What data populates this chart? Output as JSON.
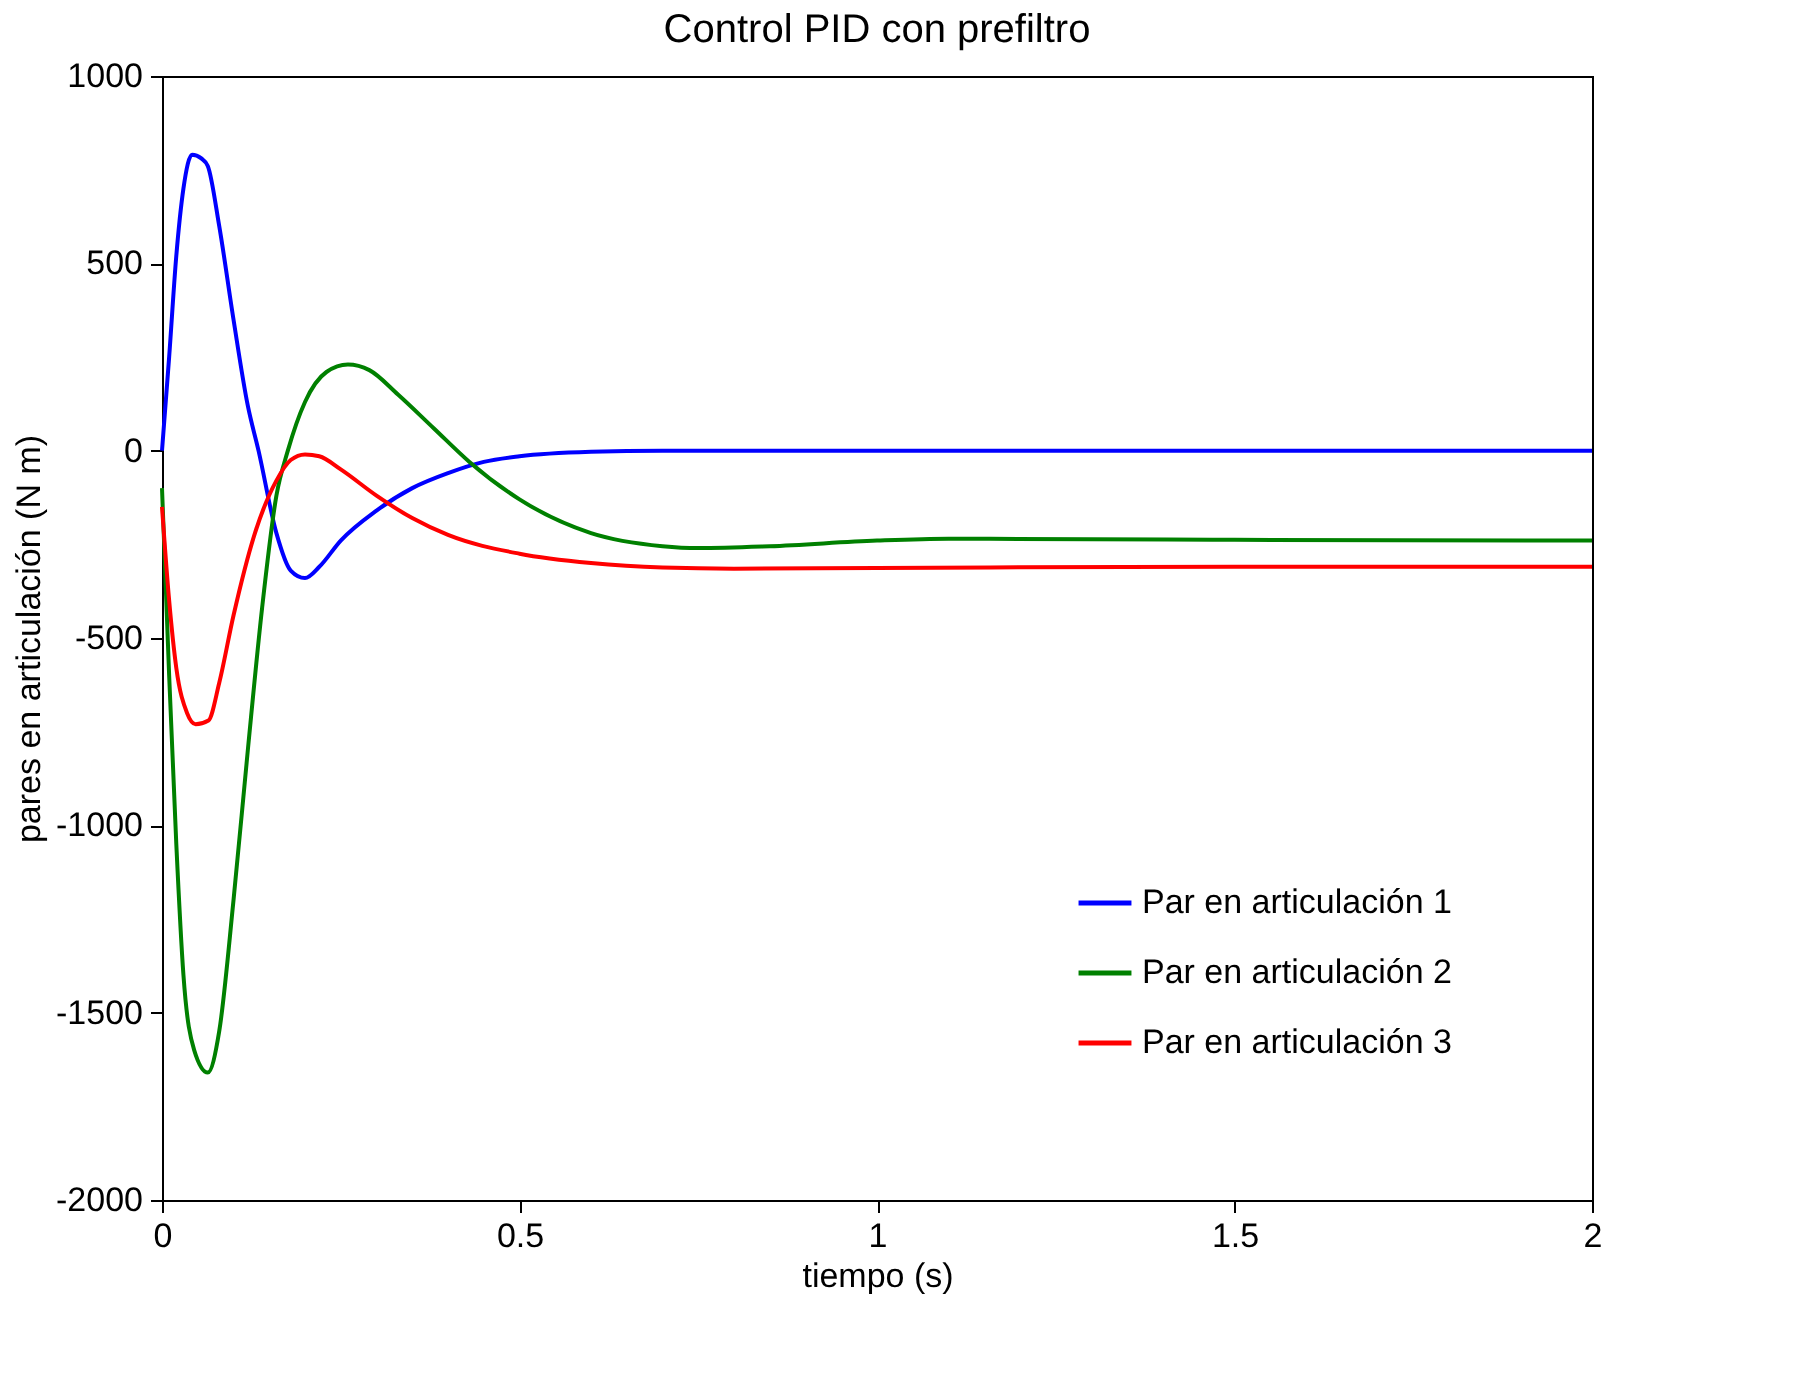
{
  "chart_data": {
    "type": "line",
    "title": "Control PID con prefiltro",
    "xlabel": "tiempo (s)",
    "ylabel": "pares en articulación (N m)",
    "xlim": [
      0,
      2
    ],
    "xticks": [
      0,
      0.5,
      1,
      1.5,
      2
    ],
    "ylim": [
      -2000,
      1000
    ],
    "yticks": [
      -2000,
      -1500,
      -1000,
      -500,
      0,
      500,
      1000
    ],
    "grid": false,
    "legend": "bottom right",
    "line_style": "solid",
    "marker": "none",
    "series": [
      {
        "name": "Par en articulación 1",
        "color": "#0000ff",
        "x": [
          0,
          0.01,
          0.02,
          0.03,
          0.042,
          0.055,
          0.064,
          0.08,
          0.1,
          0.12,
          0.135,
          0.16,
          0.18,
          0.2,
          0.22,
          0.25,
          0.3,
          0.35,
          0.4,
          0.45,
          0.5,
          0.6,
          0.7,
          1,
          1.5,
          2
        ],
        "values": [
          0,
          250,
          520,
          700,
          790,
          780,
          760,
          600,
          350,
          120,
          0,
          -220,
          -320,
          -340,
          -310,
          -240,
          -160,
          -100,
          -60,
          -30,
          -15,
          -3,
          0,
          0,
          0,
          0
        ]
      },
      {
        "name": "Par en articulación 2",
        "color": "#008000",
        "x": [
          0,
          0.01,
          0.02,
          0.03,
          0.045,
          0.064,
          0.08,
          0.1,
          0.12,
          0.14,
          0.16,
          0.176,
          0.2,
          0.23,
          0.26,
          0.29,
          0.33,
          0.38,
          0.43,
          0.5,
          0.6,
          0.7,
          0.75,
          0.85,
          1,
          1.1,
          1.5,
          2
        ],
        "values": [
          -100,
          -600,
          -1050,
          -1400,
          -1600,
          -1660,
          -1550,
          -1200,
          -800,
          -420,
          -120,
          0,
          130,
          210,
          230,
          215,
          150,
          60,
          -30,
          -130,
          -220,
          -255,
          -260,
          -255,
          -240,
          -235,
          -238,
          -240
        ]
      },
      {
        "name": "Par en articulación 3",
        "color": "#ff0000",
        "x": [
          0,
          0.01,
          0.02,
          0.035,
          0.047,
          0.065,
          0.08,
          0.1,
          0.13,
          0.16,
          0.18,
          0.2,
          0.22,
          0.25,
          0.3,
          0.35,
          0.4,
          0.5,
          0.6,
          0.7,
          0.8,
          1,
          1.5,
          2
        ],
        "values": [
          -150,
          -400,
          -580,
          -700,
          -730,
          -720,
          -620,
          -440,
          -220,
          -80,
          -25,
          -10,
          -15,
          -50,
          -120,
          -180,
          -225,
          -275,
          -300,
          -312,
          -315,
          -313,
          -310,
          -310
        ]
      }
    ]
  }
}
